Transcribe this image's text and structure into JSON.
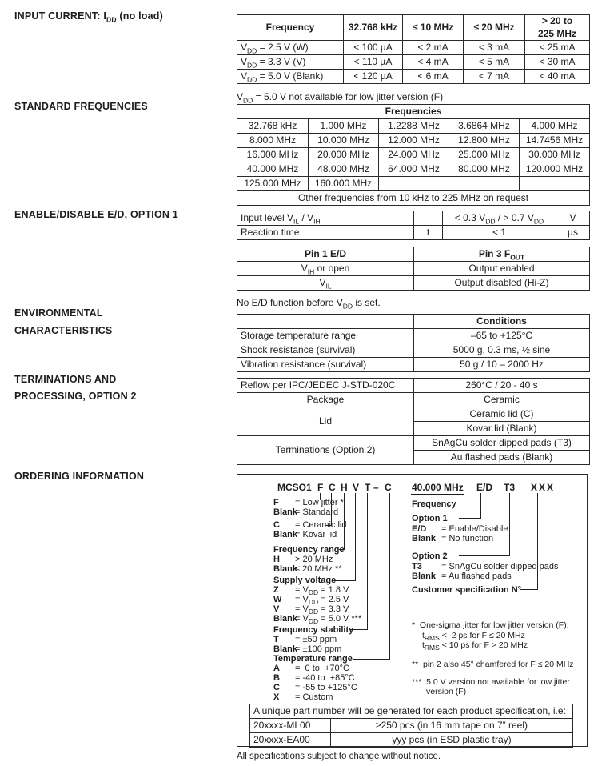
{
  "page": {
    "footer": "All specifications subject to change without notice."
  },
  "titles": [
    {
      "id": "input-current",
      "text": "INPUT CURRENT: I~DD~ (no load)"
    },
    {
      "id": "standard-frequencies",
      "text": "STANDARD FREQUENCIES"
    },
    {
      "id": "enable-disable",
      "text": "ENABLE/DISABLE E/D, OPTION 1"
    },
    {
      "id": "environmental-1",
      "text": "ENVIRONMENTAL"
    },
    {
      "id": "environmental-2",
      "text": "CHARACTERISTICS"
    },
    {
      "id": "terminations-1",
      "text": "TERMINATIONS AND"
    },
    {
      "id": "terminations-2",
      "text": "PROCESSING, OPTION 2"
    },
    {
      "id": "ordering-information",
      "text": "ORDERING INFORMATION"
    }
  ],
  "tables": {
    "input_current": {
      "rows": [
        [
          {
            "t": "Frequency",
            "b": 1
          },
          {
            "t": "32.768 kHz",
            "b": 1
          },
          {
            "t": "≤ 10 MHz",
            "b": 1
          },
          {
            "t": "≤ 20 MHz",
            "b": 1
          },
          {
            "t": "> 20 to\n225 MHz",
            "b": 1
          }
        ],
        [
          {
            "t": "V~DD~ = 2.5 V (W)",
            "a": "l"
          },
          "< 100 µA",
          "< 2 mA",
          "< 3 mA",
          "< 25 mA"
        ],
        [
          {
            "t": "V~DD~ = 3.3 V (V)",
            "a": "l"
          },
          "< 110 µA",
          "< 4 mA",
          "< 5 mA",
          "< 30 mA"
        ],
        [
          {
            "t": "V~DD~ = 5.0 V (Blank)",
            "a": "l"
          },
          "< 120 µA",
          "< 6 mA",
          "< 7 mA",
          "< 40 mA"
        ]
      ],
      "note": "V~DD~ = 5.0 V not available for low jitter version (F)"
    },
    "frequencies": {
      "rows": [
        [
          {
            "t": "Frequencies",
            "b": 1,
            "cs": 5
          }
        ],
        [
          "32.768 kHz",
          "1.000 MHz",
          "1.2288 MHz",
          "3.6864 MHz",
          "4.000 MHz"
        ],
        [
          "8.000 MHz",
          "10.000 MHz",
          "12.000 MHz",
          "12.800 MHz",
          "14.7456 MHz"
        ],
        [
          "16.000 MHz",
          "20.000 MHz",
          "24.000 MHz",
          "25.000 MHz",
          "30.000 MHz"
        ],
        [
          "40.000 MHz",
          "48.000 MHz",
          "64.000 MHz",
          "80.000 MHz",
          "120.000 MHz"
        ],
        [
          "125.000 MHz",
          "160.000 MHz",
          "",
          "",
          ""
        ],
        [
          {
            "t": "Other frequencies from 10 kHz to 225 MHz on request",
            "cs": 5
          }
        ]
      ]
    },
    "enable_limits": {
      "rows": [
        [
          {
            "t": "Input level V~IL~ / V~IH~",
            "a": "l"
          },
          "",
          "< 0.3 V~DD~ / > 0.7 V~DD~",
          "V"
        ],
        [
          {
            "t": "Reaction time",
            "a": "l"
          },
          "t",
          "< 1",
          "µs"
        ]
      ]
    },
    "pins": {
      "rows": [
        [
          {
            "t": "Pin 1 E/D",
            "b": 1
          },
          {
            "t": "Pin 3 F~OUT~",
            "b": 1
          }
        ],
        [
          "V~IH~ or open",
          "Output enabled"
        ],
        [
          "V~IL~",
          "Output disabled (Hi-Z)"
        ]
      ],
      "note": "No E/D function before V~DD~ is set."
    },
    "environmental": {
      "rows": [
        [
          "",
          {
            "t": "Conditions",
            "b": 1
          }
        ],
        [
          {
            "t": "Storage temperature range",
            "a": "l"
          },
          "–65 to +125°C"
        ],
        [
          {
            "t": "Shock resistance (survival)",
            "a": "l"
          },
          "5000 g, 0.3 ms, ½ sine"
        ],
        [
          {
            "t": "Vibration resistance (survival)",
            "a": "l"
          },
          "50 g / 10 – 2000 Hz"
        ]
      ]
    },
    "terminations": {
      "rows": [
        [
          {
            "t": "Reflow per IPC/JEDEC J-STD-020C",
            "a": "l"
          },
          "260°C / 20 - 40 s"
        ],
        [
          "Package",
          "Ceramic"
        ],
        [
          {
            "t": "Lid",
            "rs": 2
          },
          "Ceramic lid (C)"
        ],
        [
          "Kovar lid (Blank)"
        ],
        [
          {
            "t": "Terminations (Option 2)",
            "rs": 2
          },
          "SnAgCu solder dipped pads (T3)"
        ],
        [
          "Au flashed pads (Blank)"
        ]
      ]
    },
    "unique_pn": {
      "rows": [
        [
          {
            "t": "A unique part number will be generated for each product specification, i.e:",
            "cs": 2,
            "a": "l"
          }
        ],
        [
          {
            "t": "20xxxx-ML00",
            "a": "l"
          },
          "≥250 pcs  (in 16 mm tape on 7” reel)"
        ],
        [
          {
            "t": "20xxxx-EA00",
            "a": "l"
          },
          "yyy pcs  (in ESD plastic tray)"
        ]
      ]
    }
  },
  "ordering": {
    "part_tokens": [
      {
        "id": "prefix",
        "text": "MCSO1"
      },
      {
        "id": "f",
        "text": "F"
      },
      {
        "id": "c",
        "text": "C"
      },
      {
        "id": "h",
        "text": "H"
      },
      {
        "id": "v",
        "text": "V"
      },
      {
        "id": "t",
        "text": "T"
      },
      {
        "id": "dash",
        "text": "–"
      },
      {
        "id": "c2",
        "text": "C"
      },
      {
        "id": "freq",
        "text": "40.000 MHz"
      },
      {
        "id": "ed",
        "text": "E/D"
      },
      {
        "id": "t3",
        "text": "T3"
      },
      {
        "id": "xxx",
        "text": "XXX"
      }
    ],
    "legend": [
      {
        "id": "f-low",
        "key": "F",
        "text": "= Low jitter *"
      },
      {
        "id": "f-blank",
        "key": "Blank",
        "text": "= Standard"
      },
      {
        "id": "c-cer",
        "key": "C",
        "text": "= Ceramic lid"
      },
      {
        "id": "c-blank",
        "key": "Blank",
        "text": "= Kovar lid"
      },
      {
        "id": "freq-range-h",
        "key": "Frequency range",
        "text": ""
      },
      {
        "id": "fr-h",
        "key": "H",
        "text": "> 20 MHz"
      },
      {
        "id": "fr-blank",
        "key": "Blank",
        "text": "≤ 20 MHz **"
      },
      {
        "id": "supply-h",
        "key": "Supply voltage",
        "text": ""
      },
      {
        "id": "sv-z",
        "key": "Z",
        "text": "= V~DD~ = 1.8 V"
      },
      {
        "id": "sv-w",
        "key": "W",
        "text": "= V~DD~ = 2.5 V"
      },
      {
        "id": "sv-v",
        "key": "V",
        "text": "= V~DD~ = 3.3 V"
      },
      {
        "id": "sv-blank",
        "key": "Blank",
        "text": "= V~DD~ = 5.0 V ***"
      },
      {
        "id": "stab-h",
        "key": "Frequency stability",
        "text": ""
      },
      {
        "id": "st-t",
        "key": "T",
        "text": "= ±50 ppm"
      },
      {
        "id": "st-blank",
        "key": "Blank",
        "text": "= ±100 ppm"
      },
      {
        "id": "temp-h",
        "key": "Temperature range",
        "text": ""
      },
      {
        "id": "tr-a",
        "key": "A",
        "text": "=  0 to  +70°C"
      },
      {
        "id": "tr-b",
        "key": "B",
        "text": "= -40 to  +85°C"
      },
      {
        "id": "tr-c",
        "key": "C",
        "text": "= -55 to +125°C"
      },
      {
        "id": "tr-x",
        "key": "X",
        "text": "= Custom"
      },
      {
        "id": "freq-label",
        "key": "Frequency",
        "text": ""
      },
      {
        "id": "opt1-h",
        "key": "Option 1",
        "text": ""
      },
      {
        "id": "opt1-ed",
        "key": "E/D",
        "text": "= Enable/Disable"
      },
      {
        "id": "opt1-blank",
        "key": "Blank",
        "text": "= No function"
      },
      {
        "id": "opt2-h",
        "key": "Option 2",
        "text": ""
      },
      {
        "id": "opt2-t3",
        "key": "T3",
        "text": "= SnAgCu solder dipped pads"
      },
      {
        "id": "opt2-blank",
        "key": "Blank",
        "text": "= Au flashed pads"
      },
      {
        "id": "cust-spec",
        "key": "Customer specification N°",
        "text": ""
      }
    ],
    "notes": [
      {
        "id": "note1a",
        "text": "*  One-sigma jitter for low jitter version (F):"
      },
      {
        "id": "note1b",
        "text": "t~RMS~ <  2 ps for F ≤ 20 MHz"
      },
      {
        "id": "note1c",
        "text": "t~RMS~ < 10 ps for F > 20 MHz"
      },
      {
        "id": "note2",
        "text": "**  pin 2 also 45° chamfered for F ≤ 20 MHz"
      },
      {
        "id": "note3a",
        "text": "***  5.0 V version not available for low jitter"
      },
      {
        "id": "note3b",
        "text": "version (F)"
      }
    ]
  }
}
